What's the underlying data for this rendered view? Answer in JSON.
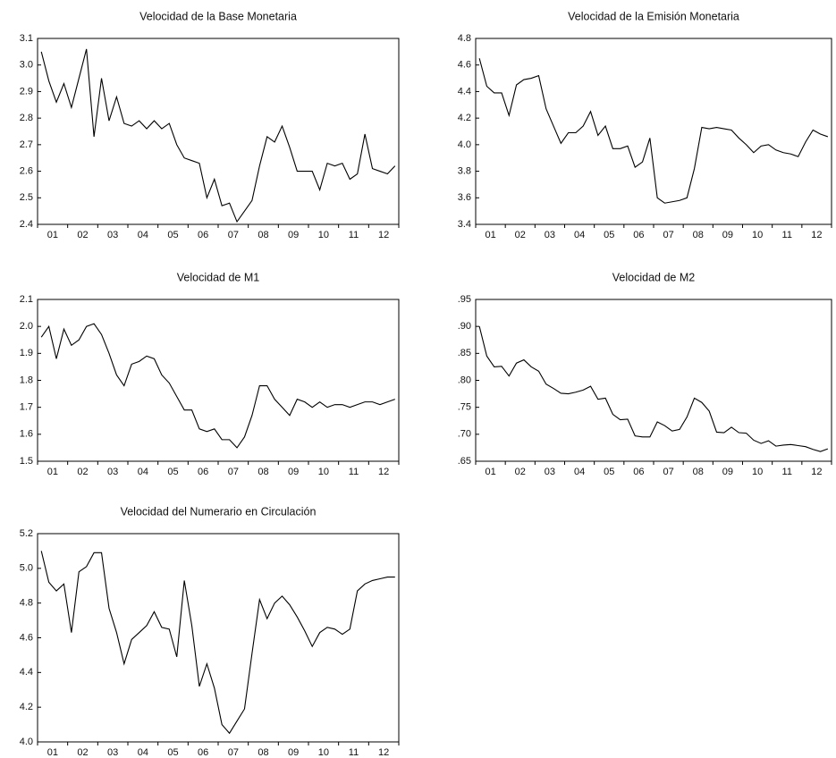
{
  "chart_data": [
    {
      "type": "line",
      "title": "Velocidad de la Base Monetaria",
      "color": "#000000",
      "categories": [
        null,
        "01",
        null,
        null,
        null,
        "02",
        null,
        null,
        null,
        "03",
        null,
        null,
        null,
        "04",
        null,
        null,
        null,
        "05",
        null,
        null,
        null,
        "06",
        null,
        null,
        null,
        "07",
        null,
        null,
        null,
        "08",
        null,
        null,
        null,
        "09",
        null,
        null,
        null,
        "10",
        null,
        null,
        null,
        "11",
        null,
        null,
        null,
        "12",
        null,
        null
      ],
      "values": [
        3.05,
        2.94,
        2.86,
        2.93,
        2.84,
        2.95,
        3.06,
        2.73,
        2.95,
        2.79,
        2.88,
        2.78,
        2.77,
        2.79,
        2.76,
        2.79,
        2.76,
        2.78,
        2.7,
        2.65,
        2.64,
        2.63,
        2.5,
        2.57,
        2.47,
        2.48,
        2.41,
        2.45,
        2.49,
        2.62,
        2.73,
        2.71,
        2.77,
        2.69,
        2.6,
        2.6,
        2.6,
        2.53,
        2.63,
        2.62,
        2.63,
        2.57,
        2.59,
        2.74,
        2.61,
        2.6,
        2.59,
        2.62
      ],
      "ylim": [
        2.4,
        3.1
      ],
      "yticks": [
        2.4,
        2.5,
        2.6,
        2.7,
        2.8,
        2.9,
        {
          "value": 3.0,
          "label": "3.0"
        },
        3.1
      ]
    },
    {
      "type": "line",
      "title": "Velocidad de la Emisión Monetaria",
      "color": "#000000",
      "categories": [
        null,
        "01",
        null,
        null,
        null,
        "02",
        null,
        null,
        null,
        "03",
        null,
        null,
        null,
        "04",
        null,
        null,
        null,
        "05",
        null,
        null,
        null,
        "06",
        null,
        null,
        null,
        "07",
        null,
        null,
        null,
        "08",
        null,
        null,
        null,
        "09",
        null,
        null,
        null,
        "10",
        null,
        null,
        null,
        "11",
        null,
        null,
        null,
        "12",
        null,
        null
      ],
      "values": [
        4.65,
        4.44,
        4.39,
        4.39,
        4.22,
        4.45,
        4.49,
        4.5,
        4.52,
        4.27,
        4.14,
        4.01,
        4.09,
        4.09,
        4.14,
        4.25,
        4.07,
        4.14,
        3.97,
        3.97,
        3.99,
        3.83,
        3.87,
        4.05,
        3.6,
        3.56,
        3.57,
        3.58,
        3.6,
        3.82,
        4.13,
        4.12,
        4.13,
        4.12,
        4.11,
        4.05,
        4.0,
        3.94,
        3.99,
        4.0,
        3.96,
        3.94,
        3.93,
        3.91,
        4.02,
        4.11,
        4.08,
        4.06
      ],
      "ylim": [
        3.4,
        4.8
      ],
      "yticks": [
        3.4,
        3.6,
        3.8,
        {
          "value": 4.0,
          "label": "4.0"
        },
        4.2,
        4.4,
        4.6,
        4.8
      ]
    },
    {
      "type": "line",
      "title": "Velocidad de M1",
      "color": "#000000",
      "categories": [
        null,
        "01",
        null,
        null,
        null,
        "02",
        null,
        null,
        null,
        "03",
        null,
        null,
        null,
        "04",
        null,
        null,
        null,
        "05",
        null,
        null,
        null,
        "06",
        null,
        null,
        null,
        "07",
        null,
        null,
        null,
        "08",
        null,
        null,
        null,
        "09",
        null,
        null,
        null,
        "10",
        null,
        null,
        null,
        "11",
        null,
        null,
        null,
        "12",
        null,
        null
      ],
      "values": [
        1.96,
        2.0,
        1.88,
        1.99,
        1.93,
        1.95,
        2.0,
        2.01,
        1.97,
        1.9,
        1.82,
        1.78,
        1.86,
        1.87,
        1.89,
        1.88,
        1.82,
        1.79,
        1.74,
        1.69,
        1.69,
        1.62,
        1.61,
        1.62,
        1.58,
        1.58,
        1.55,
        1.59,
        1.67,
        1.78,
        1.78,
        1.73,
        1.7,
        1.67,
        1.73,
        1.72,
        1.7,
        1.72,
        1.7,
        1.71,
        1.71,
        1.7,
        1.71,
        1.72,
        1.72,
        1.71,
        1.72,
        1.73
      ],
      "ylim": [
        1.5,
        2.1
      ],
      "yticks": [
        1.5,
        1.6,
        1.7,
        1.8,
        1.9,
        {
          "value": 2.0,
          "label": "2.0"
        },
        2.1
      ]
    },
    {
      "type": "line",
      "title": "Velocidad de M2",
      "color": "#000000",
      "categories": [
        null,
        "01",
        null,
        null,
        null,
        "02",
        null,
        null,
        null,
        "03",
        null,
        null,
        null,
        "04",
        null,
        null,
        null,
        "05",
        null,
        null,
        null,
        "06",
        null,
        null,
        null,
        "07",
        null,
        null,
        null,
        "08",
        null,
        null,
        null,
        "09",
        null,
        null,
        null,
        "10",
        null,
        null,
        null,
        "11",
        null,
        null,
        null,
        "12",
        null,
        null
      ],
      "values": [
        0.9,
        0.845,
        0.825,
        0.826,
        0.808,
        0.832,
        0.838,
        0.825,
        0.817,
        0.793,
        0.785,
        0.776,
        0.775,
        0.778,
        0.782,
        0.789,
        0.765,
        0.767,
        0.737,
        0.727,
        0.728,
        0.697,
        0.695,
        0.695,
        0.723,
        0.716,
        0.706,
        0.709,
        0.732,
        0.767,
        0.759,
        0.743,
        0.704,
        0.703,
        0.713,
        0.703,
        0.702,
        0.689,
        0.683,
        0.688,
        0.678,
        0.68,
        0.681,
        0.679,
        0.677,
        0.672,
        0.668,
        0.673
      ],
      "ylim": [
        0.65,
        0.95
      ],
      "yticks": [
        {
          "value": 0.65,
          "label": ".65"
        },
        {
          "value": 0.7,
          "label": ".70"
        },
        {
          "value": 0.75,
          "label": ".75"
        },
        {
          "value": 0.8,
          "label": ".80"
        },
        {
          "value": 0.85,
          "label": ".85"
        },
        {
          "value": 0.9,
          "label": ".90"
        },
        {
          "value": 0.95,
          "label": ".95"
        }
      ]
    },
    {
      "type": "line",
      "title": "Velocidad del Numerario en Circulación",
      "color": "#000000",
      "categories": [
        null,
        "01",
        null,
        null,
        null,
        "02",
        null,
        null,
        null,
        "03",
        null,
        null,
        null,
        "04",
        null,
        null,
        null,
        "05",
        null,
        null,
        null,
        "06",
        null,
        null,
        null,
        "07",
        null,
        null,
        null,
        "08",
        null,
        null,
        null,
        "09",
        null,
        null,
        null,
        "10",
        null,
        null,
        null,
        "11",
        null,
        null,
        null,
        "12",
        null,
        null
      ],
      "values": [
        5.1,
        4.92,
        4.87,
        4.91,
        4.63,
        4.98,
        5.01,
        5.09,
        5.09,
        4.77,
        4.63,
        4.45,
        4.59,
        4.63,
        4.67,
        4.75,
        4.66,
        4.65,
        4.49,
        4.93,
        4.67,
        4.32,
        4.45,
        4.31,
        4.1,
        4.05,
        4.12,
        4.19,
        4.51,
        4.82,
        4.71,
        4.8,
        4.84,
        4.79,
        4.72,
        4.64,
        4.55,
        4.63,
        4.66,
        4.65,
        4.62,
        4.65,
        4.87,
        4.91,
        4.93,
        4.94,
        4.95,
        4.95
      ],
      "ylim": [
        4.0,
        5.2
      ],
      "yticks": [
        {
          "value": 4.0,
          "label": "4.0"
        },
        4.2,
        4.4,
        4.6,
        4.8,
        {
          "value": 5.0,
          "label": "5.0"
        },
        5.2
      ]
    }
  ]
}
